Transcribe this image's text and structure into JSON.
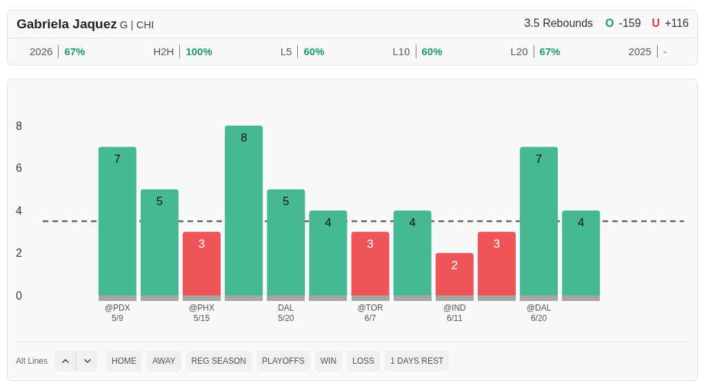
{
  "chart_data": {
    "type": "bar",
    "title": "Gabriela Jaquez",
    "subtitle": "G | CHI",
    "categories": [
      "@PDX\n5/9",
      null,
      "@PHX\n5/15",
      null,
      "DAL\n5/20",
      null,
      "@TOR\n6/7",
      null,
      "@IND\n6/11",
      null,
      "@DAL\n6/20",
      null
    ],
    "values": [
      7,
      5,
      3,
      8,
      5,
      4,
      3,
      4,
      2,
      3,
      7,
      4
    ],
    "colors": [
      "#46b994",
      "#46b994",
      "#ef5558",
      "#46b994",
      "#46b994",
      "#46b994",
      "#ef5558",
      "#46b994",
      "#ef5558",
      "#ef5558",
      "#46b994",
      "#46b994"
    ],
    "data_labels": true,
    "ylim": [
      0,
      8
    ],
    "yticks": [
      0,
      2,
      4,
      6,
      8
    ],
    "ref_lines": [
      {
        "axis": "y",
        "value": 3.5,
        "color": "#7a7a7a",
        "line_style": "dashed"
      }
    ],
    "annotations": [
      "3.5 Rebounds",
      "O",
      "-159",
      "U",
      "+116",
      "2026",
      "67%",
      "H2H",
      "100%",
      "L5",
      "60%",
      "L10",
      "60%",
      "L20",
      "67%",
      "2025",
      "-",
      "Alt Lines",
      "HOME",
      "AWAY",
      "REG SEASON",
      "PLAYOFFS",
      "WIN",
      "LOSS",
      "1 DAYS REST"
    ]
  }
}
